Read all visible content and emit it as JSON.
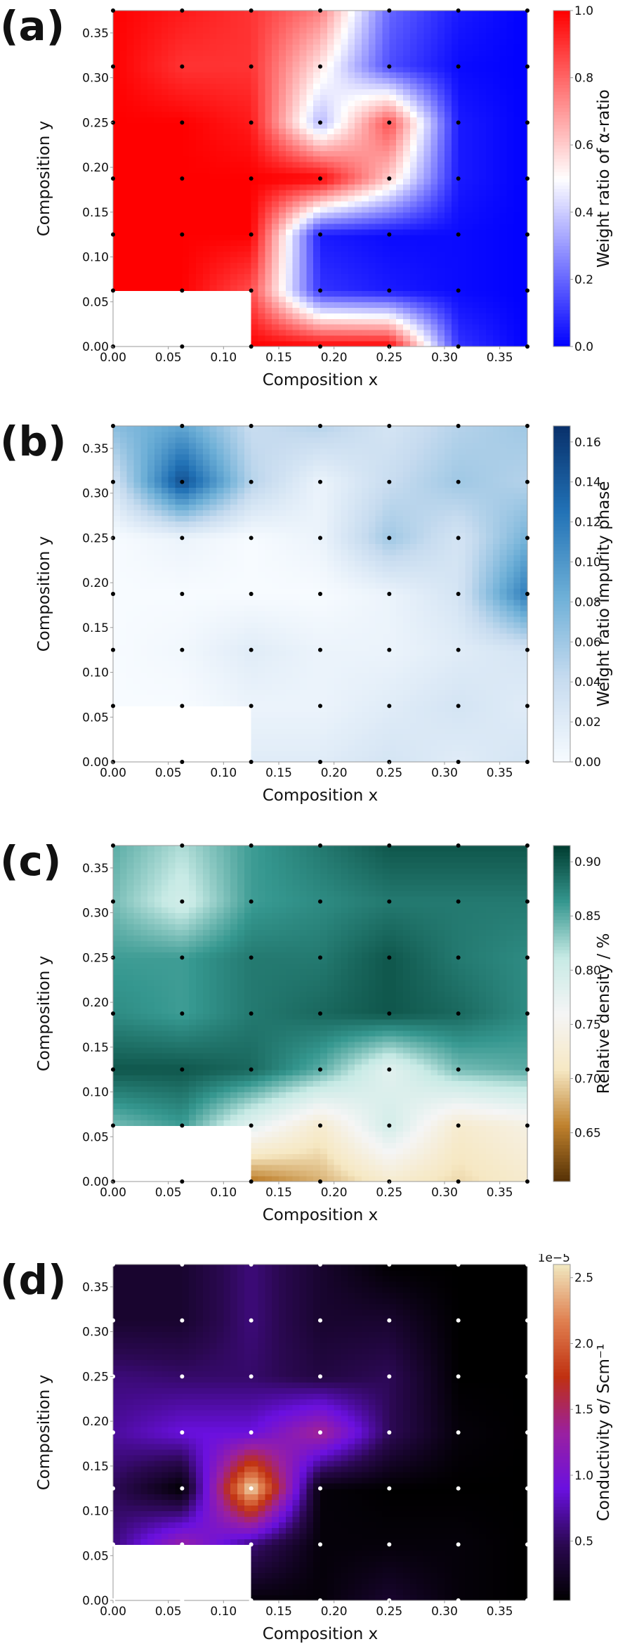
{
  "chart_data": [
    {
      "type": "heatmap",
      "panel_label": "(a)",
      "xlabel": "Composition x",
      "ylabel": "Composition y",
      "xlim": [
        0,
        0.375
      ],
      "ylim": [
        0,
        0.375
      ],
      "x": [
        0,
        0.0625,
        0.125,
        0.1875,
        0.25,
        0.3125,
        0.375
      ],
      "y": [
        0,
        0.0625,
        0.125,
        0.1875,
        0.25,
        0.3125,
        0.375
      ],
      "xtick_values": [
        0,
        0.05,
        0.1,
        0.15,
        0.2,
        0.25,
        0.3,
        0.35
      ],
      "xtick_labels": [
        "0.00",
        "0.05",
        "0.10",
        "0.15",
        "0.20",
        "0.25",
        "0.30",
        "0.35"
      ],
      "ytick_values": [
        0,
        0.05,
        0.1,
        0.15,
        0.2,
        0.25,
        0.3,
        0.35
      ],
      "ytick_labels": [
        "0.00",
        "0.05",
        "0.10",
        "0.15",
        "0.20",
        "0.25",
        "0.30",
        "0.35"
      ],
      "z": [
        [
          null,
          null,
          1.0,
          1.0,
          1.0,
          0.1,
          0.0
        ],
        [
          1.0,
          1.0,
          0.85,
          0.1,
          0.05,
          0.02,
          0.0
        ],
        [
          1.0,
          1.0,
          1.0,
          0.05,
          0.02,
          0.02,
          0.0
        ],
        [
          1.0,
          1.0,
          1.0,
          1.0,
          0.6,
          0.05,
          0.0
        ],
        [
          1.0,
          1.0,
          0.95,
          0.35,
          0.85,
          0.05,
          0.0
        ],
        [
          1.0,
          0.9,
          0.9,
          0.55,
          0.15,
          0.02,
          0.0
        ],
        [
          1.0,
          0.95,
          0.9,
          0.75,
          0.2,
          0.05,
          0.0
        ]
      ],
      "missing_region": {
        "x": [
          0,
          0.125
        ],
        "y": [
          0,
          0.0625
        ]
      },
      "marker_color": "#000000",
      "colorbar": {
        "label": "Weight ratio of α-ratio",
        "range": [
          0,
          1.0
        ],
        "tick_values": [
          0,
          0.2,
          0.4,
          0.6,
          0.8,
          1.0
        ],
        "tick_labels": [
          "0.0",
          "0.2",
          "0.4",
          "0.6",
          "0.8",
          "1.0"
        ],
        "offset_text": "",
        "colors": [
          "#0000ff",
          "#ffffff",
          "#ff0000"
        ]
      }
    },
    {
      "type": "heatmap",
      "panel_label": "(b)",
      "xlabel": "Composition x",
      "ylabel": "Composition y",
      "xlim": [
        0,
        0.375
      ],
      "ylim": [
        0,
        0.375
      ],
      "x": [
        0,
        0.0625,
        0.125,
        0.1875,
        0.25,
        0.3125,
        0.375
      ],
      "y": [
        0,
        0.0625,
        0.125,
        0.1875,
        0.25,
        0.3125,
        0.375
      ],
      "xtick_values": [
        0,
        0.05,
        0.1,
        0.15,
        0.2,
        0.25,
        0.3,
        0.35
      ],
      "xtick_labels": [
        "0.00",
        "0.05",
        "0.10",
        "0.15",
        "0.20",
        "0.25",
        "0.30",
        "0.35"
      ],
      "ytick_values": [
        0,
        0.05,
        0.1,
        0.15,
        0.2,
        0.25,
        0.3,
        0.35
      ],
      "ytick_labels": [
        "0.00",
        "0.05",
        "0.10",
        "0.15",
        "0.20",
        "0.25",
        "0.30",
        "0.35"
      ],
      "z": [
        [
          null,
          null,
          0.02,
          0.02,
          0.03,
          0.02,
          0.03
        ],
        [
          0.0,
          0.0,
          0.01,
          0.01,
          0.02,
          0.03,
          0.02
        ],
        [
          0.0,
          0.005,
          0.02,
          0.01,
          0.01,
          0.02,
          0.03
        ],
        [
          0.0,
          0.0,
          0.0,
          0.0,
          0.01,
          0.03,
          0.12
        ],
        [
          0.0,
          0.01,
          0.0,
          0.01,
          0.06,
          0.03,
          0.08
        ],
        [
          0.03,
          0.15,
          0.05,
          0.01,
          0.04,
          0.06,
          0.05
        ],
        [
          0.07,
          0.09,
          0.04,
          0.05,
          0.03,
          0.05,
          0.06
        ]
      ],
      "missing_region": {
        "x": [
          0,
          0.125
        ],
        "y": [
          0,
          0.0625
        ]
      },
      "marker_color": "#000000",
      "colorbar": {
        "label": "Weight ratio impurity phase",
        "range": [
          0,
          0.168
        ],
        "tick_values": [
          0,
          0.02,
          0.04,
          0.06,
          0.08,
          0.1,
          0.12,
          0.14,
          0.16
        ],
        "tick_labels": [
          "0.00",
          "0.02",
          "0.04",
          "0.06",
          "0.08",
          "0.10",
          "0.12",
          "0.14",
          "0.16"
        ],
        "offset_text": "",
        "colors": [
          "#f7fbff",
          "#c6dbef",
          "#6baed6",
          "#2171b5",
          "#08306b"
        ]
      }
    },
    {
      "type": "heatmap",
      "panel_label": "(c)",
      "xlabel": "Composition x",
      "ylabel": "Composition y",
      "xlim": [
        0,
        0.375
      ],
      "ylim": [
        0,
        0.375
      ],
      "x": [
        0,
        0.0625,
        0.125,
        0.1875,
        0.25,
        0.3125,
        0.375
      ],
      "y": [
        0,
        0.0625,
        0.125,
        0.1875,
        0.25,
        0.3125,
        0.375
      ],
      "xtick_values": [
        0,
        0.05,
        0.1,
        0.15,
        0.2,
        0.25,
        0.3,
        0.35
      ],
      "xtick_labels": [
        "0.00",
        "0.05",
        "0.10",
        "0.15",
        "0.20",
        "0.25",
        "0.30",
        "0.35"
      ],
      "ytick_values": [
        0,
        0.05,
        0.1,
        0.15,
        0.2,
        0.25,
        0.3,
        0.35
      ],
      "ytick_labels": [
        "0.00",
        "0.05",
        "0.10",
        "0.15",
        "0.20",
        "0.25",
        "0.30",
        "0.35"
      ],
      "z": [
        [
          null,
          null,
          0.65,
          0.68,
          0.72,
          0.7,
          0.72
        ],
        [
          0.84,
          0.86,
          0.78,
          0.72,
          0.8,
          0.72,
          0.74
        ],
        [
          0.9,
          0.9,
          0.89,
          0.85,
          0.78,
          0.84,
          0.85
        ],
        [
          0.87,
          0.86,
          0.88,
          0.89,
          0.9,
          0.89,
          0.87
        ],
        [
          0.86,
          0.86,
          0.88,
          0.88,
          0.9,
          0.88,
          0.87
        ],
        [
          0.84,
          0.8,
          0.86,
          0.87,
          0.88,
          0.88,
          0.88
        ],
        [
          0.85,
          0.82,
          0.86,
          0.88,
          0.9,
          0.9,
          0.9
        ]
      ],
      "missing_region": {
        "x": [
          0,
          0.125
        ],
        "y": [
          0,
          0.0625
        ]
      },
      "marker_color": "#000000",
      "colorbar": {
        "label": "Relative density / %",
        "range": [
          0.605,
          0.915
        ],
        "tick_values": [
          0.65,
          0.7,
          0.75,
          0.8,
          0.85,
          0.9
        ],
        "tick_labels": [
          "0.65",
          "0.70",
          "0.75",
          "0.80",
          "0.85",
          "0.90"
        ],
        "offset_text": "",
        "colors": [
          "#543005",
          "#bf812d",
          "#f6e8c3",
          "#f5f5f5",
          "#c7eae5",
          "#35978f",
          "#003c30"
        ]
      }
    },
    {
      "type": "heatmap",
      "panel_label": "(d)",
      "xlabel": "Composition x",
      "ylabel": "Composition y",
      "xlim": [
        0,
        0.375
      ],
      "ylim": [
        0,
        0.375
      ],
      "x": [
        0,
        0.0625,
        0.125,
        0.1875,
        0.25,
        0.3125,
        0.375
      ],
      "y": [
        0,
        0.0625,
        0.125,
        0.1875,
        0.25,
        0.3125,
        0.375
      ],
      "xtick_values": [
        0,
        0.05,
        0.1,
        0.15,
        0.2,
        0.25,
        0.3,
        0.35
      ],
      "xtick_labels": [
        "0.00",
        "0.05",
        "0.10",
        "0.15",
        "0.20",
        "0.25",
        "0.30",
        "0.35"
      ],
      "ytick_values": [
        0,
        0.05,
        0.1,
        0.15,
        0.2,
        0.25,
        0.3,
        0.35
      ],
      "ytick_labels": [
        "0.00",
        "0.05",
        "0.10",
        "0.15",
        "0.20",
        "0.25",
        "0.30",
        "0.35"
      ],
      "z": [
        [
          null,
          null,
          0.1,
          0.1,
          0.3,
          0.1,
          0.05
        ],
        [
          0.6,
          1.3,
          0.6,
          0.1,
          0.1,
          0.1,
          0.05
        ],
        [
          0.5,
          0.05,
          2.6,
          0.1,
          0.05,
          0.05,
          0.05
        ],
        [
          0.7,
          0.9,
          0.9,
          1.4,
          0.5,
          0.1,
          0.05
        ],
        [
          0.6,
          0.55,
          0.55,
          0.4,
          0.5,
          0.05,
          0.05
        ],
        [
          0.3,
          0.3,
          0.6,
          0.3,
          0.3,
          0.05,
          0.05
        ],
        [
          0.3,
          0.3,
          0.6,
          0.3,
          0.05,
          0.05,
          0.05
        ]
      ],
      "missing_region": {
        "x": [
          0,
          0.125
        ],
        "y": [
          0,
          0.0625
        ]
      },
      "marker_color": "#ffffff",
      "colorbar": {
        "label": "Conductivity σ/ Scm⁻¹",
        "range": [
          0.05,
          2.6
        ],
        "tick_values": [
          0.5,
          1.0,
          1.5,
          2.0,
          2.5
        ],
        "tick_labels": [
          "0.5",
          "1.0",
          "1.5",
          "2.0",
          "2.5"
        ],
        "offset_text": "1e−5",
        "colors": [
          "#000000",
          "#2a0850",
          "#6a10e0",
          "#9a20a0",
          "#c03010",
          "#e08050",
          "#f0e8c0"
        ]
      }
    }
  ]
}
